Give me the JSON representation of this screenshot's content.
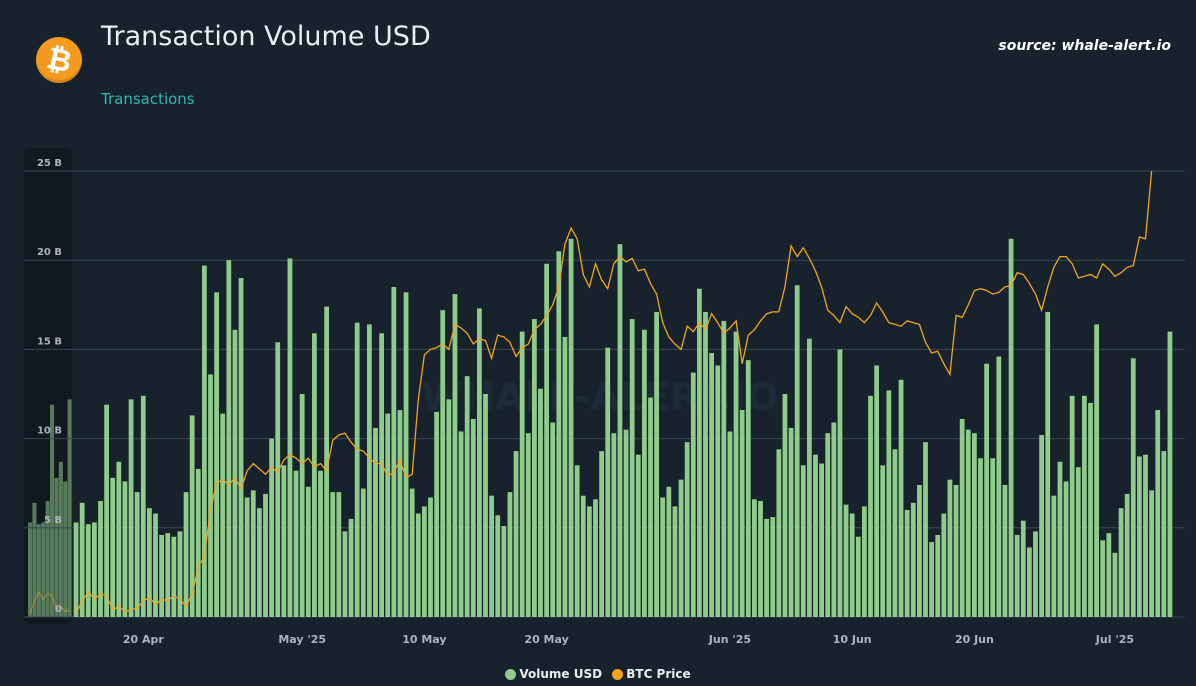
{
  "header": {
    "title": "Transaction Volume USD",
    "subtitle": "Transactions",
    "source": "source: whale-alert.io",
    "logo_glyph": "₿",
    "logo_icon": "bitcoin-logo-icon",
    "watermark": "WHALE-ALERT.IO"
  },
  "colors": {
    "bar": "#8fcb8a",
    "line": "#f0a521",
    "background": "#17222d",
    "grid": "#3a4855",
    "axis_text": "#a9b4be",
    "subtitle": "#2fb8b2"
  },
  "chart_data": {
    "type": "bar",
    "x_tick_labels": [
      "20 Apr",
      "May '25",
      "10 May",
      "20 May",
      "Jun '25",
      "10 Jun",
      "20 Jun",
      "Jul '25"
    ],
    "y_tick_labels": [
      "0",
      "5 B",
      "10 B",
      "15 B",
      "20 B",
      "25 B"
    ],
    "ylim": [
      0,
      25
    ],
    "ylabel_unit": "B",
    "grid": true,
    "legend_position": "bottom-center",
    "series": [
      {
        "name": "Volume USD",
        "type": "bar",
        "values": [
          5.3,
          6.4,
          5.2,
          5.3,
          6.5,
          11.9,
          7.8,
          8.7,
          7.6,
          12.2,
          7.0,
          12.4,
          6.1,
          5.8,
          4.6,
          4.7,
          4.5,
          4.8,
          7.0,
          11.3,
          8.3,
          19.7,
          13.6,
          18.2,
          11.4,
          20.0,
          16.1,
          19.0,
          6.7,
          7.1,
          6.1,
          6.9,
          10.0,
          15.4,
          8.5,
          20.1,
          8.2,
          12.5,
          7.3,
          15.9,
          8.2,
          17.4,
          7.0,
          7.0,
          4.8,
          5.5,
          16.5,
          7.2,
          16.4,
          10.6,
          15.9,
          11.4,
          18.5,
          11.6,
          18.2,
          7.2,
          5.8,
          6.2,
          6.7,
          11.5,
          17.2,
          12.2,
          18.1,
          10.4,
          13.5,
          11.1,
          17.3,
          12.5,
          6.8,
          5.7,
          5.1,
          7.0,
          9.3,
          16.0,
          10.3,
          16.7,
          12.8,
          19.8,
          10.9,
          20.5,
          15.7,
          21.2,
          8.5,
          6.8,
          6.2,
          6.6,
          9.3,
          15.1,
          10.3,
          20.9,
          10.5,
          16.7,
          9.1,
          16.1,
          12.3,
          17.1,
          6.7,
          7.3,
          6.2,
          7.7,
          9.8,
          13.7,
          18.4,
          17.1,
          14.8,
          14.1,
          16.6,
          10.4,
          16.0,
          11.6,
          14.4,
          6.6,
          6.5,
          5.5,
          5.6,
          9.4,
          12.5,
          10.6,
          18.6,
          8.5,
          15.6,
          9.1,
          8.6,
          10.3,
          10.9,
          15.0,
          6.3,
          5.8,
          4.5,
          6.2,
          12.4,
          14.1,
          8.5,
          12.7,
          9.4,
          13.3,
          6.0,
          6.4,
          7.4,
          9.8,
          4.2,
          4.6,
          5.8,
          7.7,
          7.4,
          11.1,
          10.5,
          10.3,
          8.9,
          14.2,
          8.9,
          14.6,
          7.4,
          21.2,
          4.6,
          5.4,
          3.9,
          4.8,
          10.2,
          17.1,
          6.8,
          8.7,
          7.6,
          12.4,
          8.4,
          12.4,
          12.0,
          16.4,
          4.3,
          4.7,
          3.6,
          6.1,
          6.9,
          14.5,
          9.0,
          9.1,
          7.1,
          11.6,
          9.3,
          16.0
        ]
      },
      {
        "name": "BTC Price",
        "type": "line",
        "scale": "relative (secondary axis, no ticks shown)",
        "values": [
          0.2,
          0.9,
          1.4,
          1.0,
          1.3,
          1.2,
          0.4,
          0.6,
          0.3,
          0.4,
          0.5,
          0.9,
          1.1,
          0.7,
          1.0,
          0.9,
          1.2,
          1.0,
          0.6,
          1.3,
          2.8,
          3.4,
          6.0,
          7.5,
          7.7,
          7.4,
          7.8,
          7.2,
          8.2,
          8.6,
          8.3,
          8.0,
          8.4,
          8.1,
          8.8,
          9.1,
          8.9,
          8.6,
          8.9,
          8.4,
          8.6,
          8.2,
          9.9,
          10.2,
          10.3,
          9.8,
          9.4,
          9.3,
          8.9,
          8.6,
          8.6,
          7.9,
          8.1,
          8.8,
          7.8,
          8.0,
          12.2,
          14.7,
          15.0,
          15.1,
          15.3,
          15.0,
          16.4,
          16.2,
          15.9,
          15.3,
          15.6,
          15.5,
          14.5,
          15.8,
          15.7,
          15.4,
          14.6,
          15.1,
          15.3,
          16.1,
          16.4,
          16.9,
          17.5,
          18.5,
          20.9,
          21.8,
          21.2,
          19.2,
          18.5,
          19.8,
          18.9,
          18.4,
          19.8,
          20.2,
          19.9,
          20.1,
          19.4,
          19.5,
          18.7,
          18.1,
          16.5,
          15.7,
          15.3,
          15.0,
          16.3,
          16.0,
          16.5,
          16.1,
          17.0,
          16.5,
          15.9,
          16.2,
          16.6,
          14.2,
          15.8,
          16.1,
          16.6,
          17.0,
          17.1,
          17.1,
          18.5,
          20.8,
          20.2,
          20.7,
          20.1,
          19.4,
          18.5,
          17.2,
          16.9,
          16.5,
          17.4,
          17.0,
          16.8,
          16.5,
          16.9,
          17.6,
          17.1,
          16.5,
          16.4,
          16.3,
          16.6,
          16.5,
          16.4,
          15.4,
          14.8,
          14.9,
          14.2,
          13.6,
          16.9,
          16.8,
          17.5,
          18.3,
          18.4,
          18.3,
          18.1,
          18.2,
          18.5,
          18.6,
          19.3,
          19.2,
          18.7,
          18.1,
          17.2,
          18.5,
          19.6,
          20.2,
          20.2,
          19.8,
          19.0,
          19.1,
          19.2,
          19.0,
          19.8,
          19.5,
          19.1,
          19.3,
          19.6,
          19.7,
          21.3,
          21.2,
          25.0
        ]
      }
    ]
  },
  "legend": {
    "items": [
      {
        "label": "Volume USD",
        "color": "#8fcb8a"
      },
      {
        "label": "BTC Price",
        "color": "#f0a521"
      }
    ]
  }
}
